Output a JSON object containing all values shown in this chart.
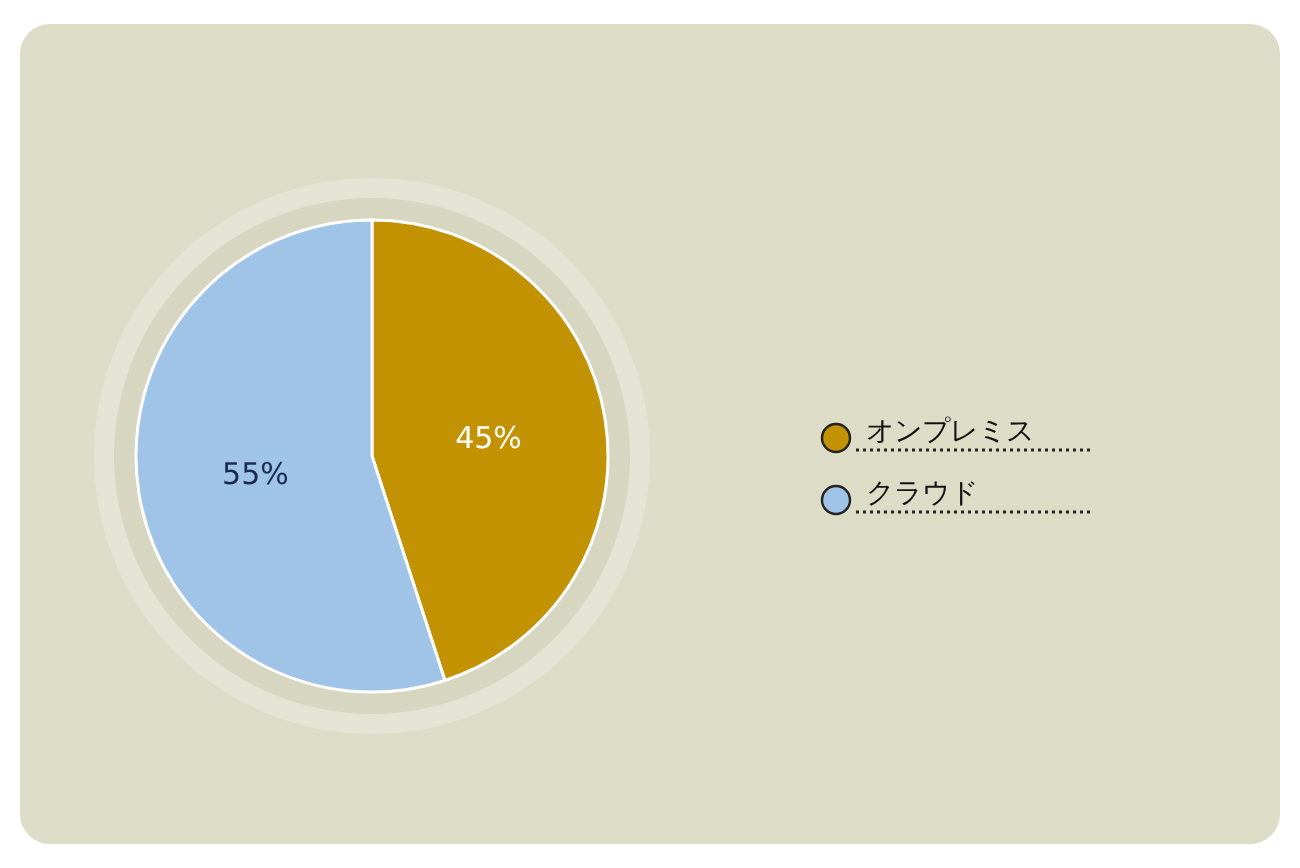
{
  "chart_data": {
    "type": "pie",
    "categories": [
      "オンプレミス",
      "クラウド"
    ],
    "values": [
      45,
      55
    ],
    "colors": [
      "#c39202",
      "#9fc4e7"
    ],
    "value_labels": [
      "45%",
      "55%"
    ],
    "legend": "right"
  }
}
